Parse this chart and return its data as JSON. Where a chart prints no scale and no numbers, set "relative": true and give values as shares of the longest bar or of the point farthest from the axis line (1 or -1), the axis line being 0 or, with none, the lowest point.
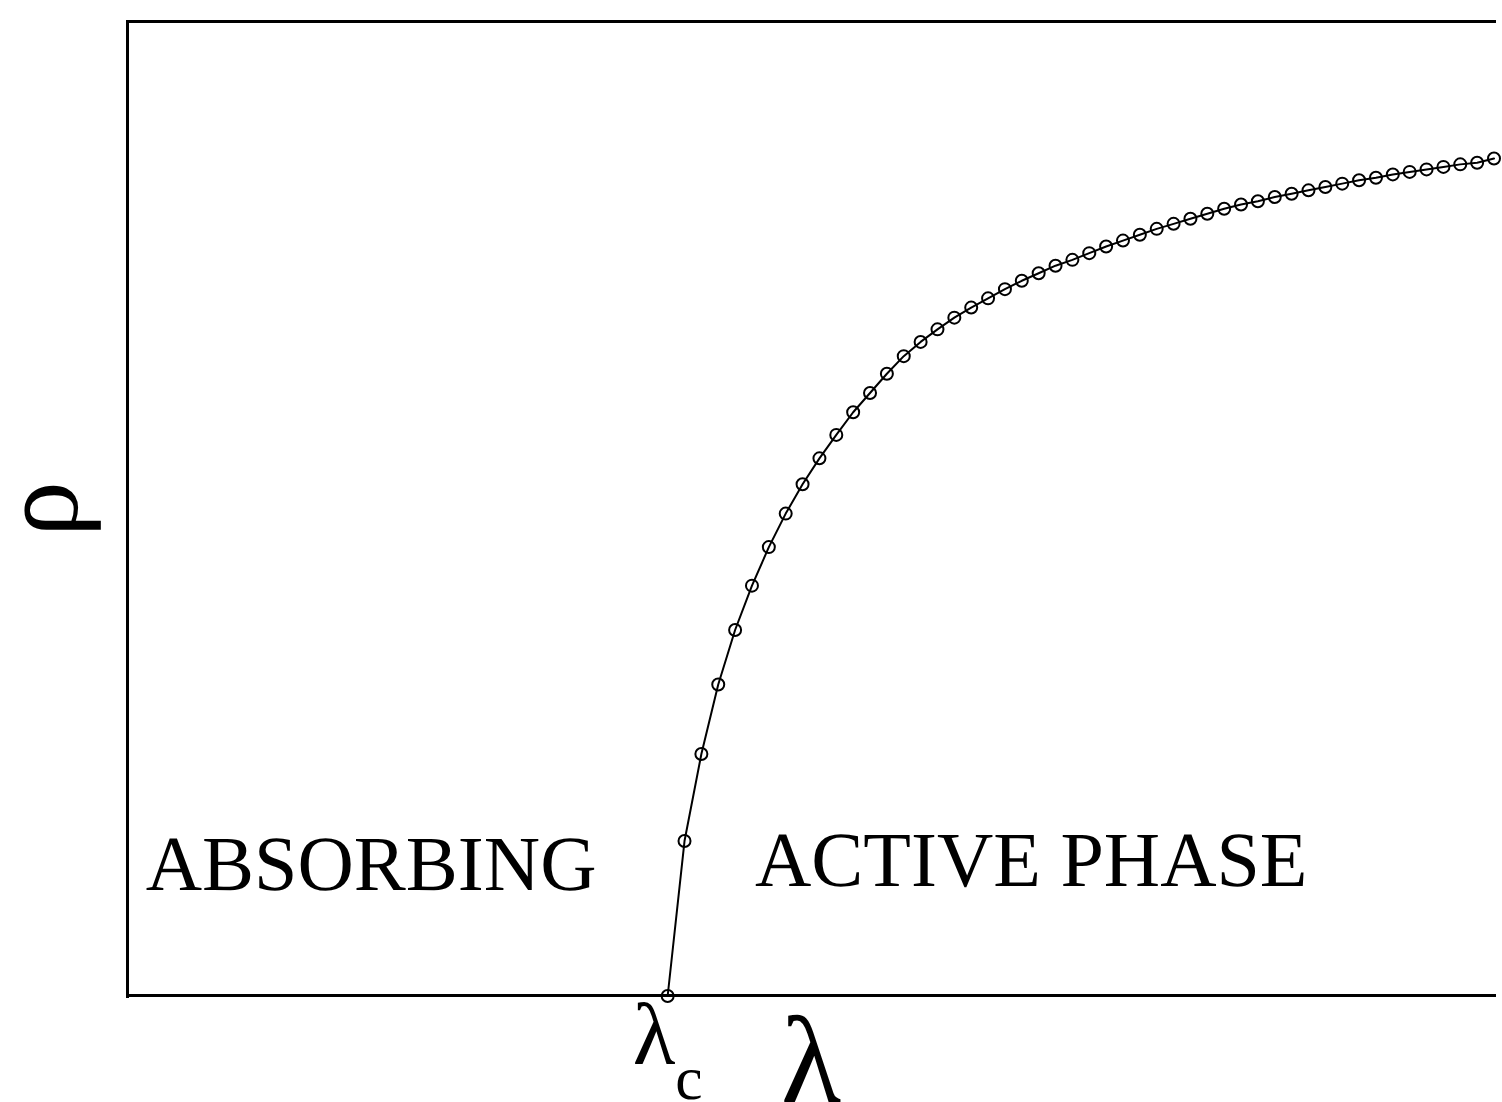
{
  "chart_data": {
    "type": "line",
    "xlabel": "λ",
    "ylabel": "ρ",
    "relative": true,
    "color": "#000000",
    "marker": "circle",
    "line_style": "solid",
    "grid": false,
    "legend": false,
    "annotations": [
      "ABSORBING",
      "ACTIVE PHASE",
      "λ$_{c}$"
    ],
    "categories": [
      null,
      null,
      null,
      null,
      null,
      null,
      null,
      null,
      null,
      null,
      null,
      null,
      null,
      null,
      null,
      null,
      null,
      null,
      null,
      null,
      null,
      null,
      null,
      null,
      null,
      null,
      null,
      null,
      null,
      null,
      null,
      null,
      null,
      null,
      null,
      null,
      null,
      null,
      null,
      null,
      null,
      null,
      null,
      null,
      null,
      null,
      null,
      null,
      null,
      null,
      null,
      null,
      null,
      null,
      null,
      null,
      null,
      null,
      null,
      null,
      null,
      null,
      null,
      null,
      null,
      null,
      null,
      null,
      null,
      null,
      null,
      null,
      null,
      null,
      null,
      null,
      null,
      null,
      null,
      null,
      null,
      null
    ],
    "values": [
      null,
      null,
      null,
      null,
      null,
      null,
      null,
      null,
      null,
      null,
      null,
      null,
      null,
      null,
      null,
      null,
      null,
      null,
      null,
      null,
      null,
      null,
      null,
      null,
      null,
      null,
      null,
      null,
      null,
      null,
      null,
      null,
      0,
      0.185,
      0.289,
      0.372,
      0.437,
      0.49,
      0.536,
      0.576,
      0.611,
      0.642,
      0.67,
      0.697,
      0.72,
      0.743,
      0.764,
      0.781,
      0.796,
      0.81,
      0.822,
      0.833,
      0.844,
      0.854,
      0.863,
      0.872,
      0.879,
      0.887,
      0.895,
      0.902,
      0.909,
      0.916,
      0.922,
      0.928,
      0.934,
      0.94,
      0.945,
      0.949,
      0.954,
      0.958,
      0.962,
      0.966,
      0.97,
      0.974,
      0.977,
      0.981,
      0.984,
      0.987,
      0.99,
      0.993,
      0.995,
      1
    ]
  }
}
